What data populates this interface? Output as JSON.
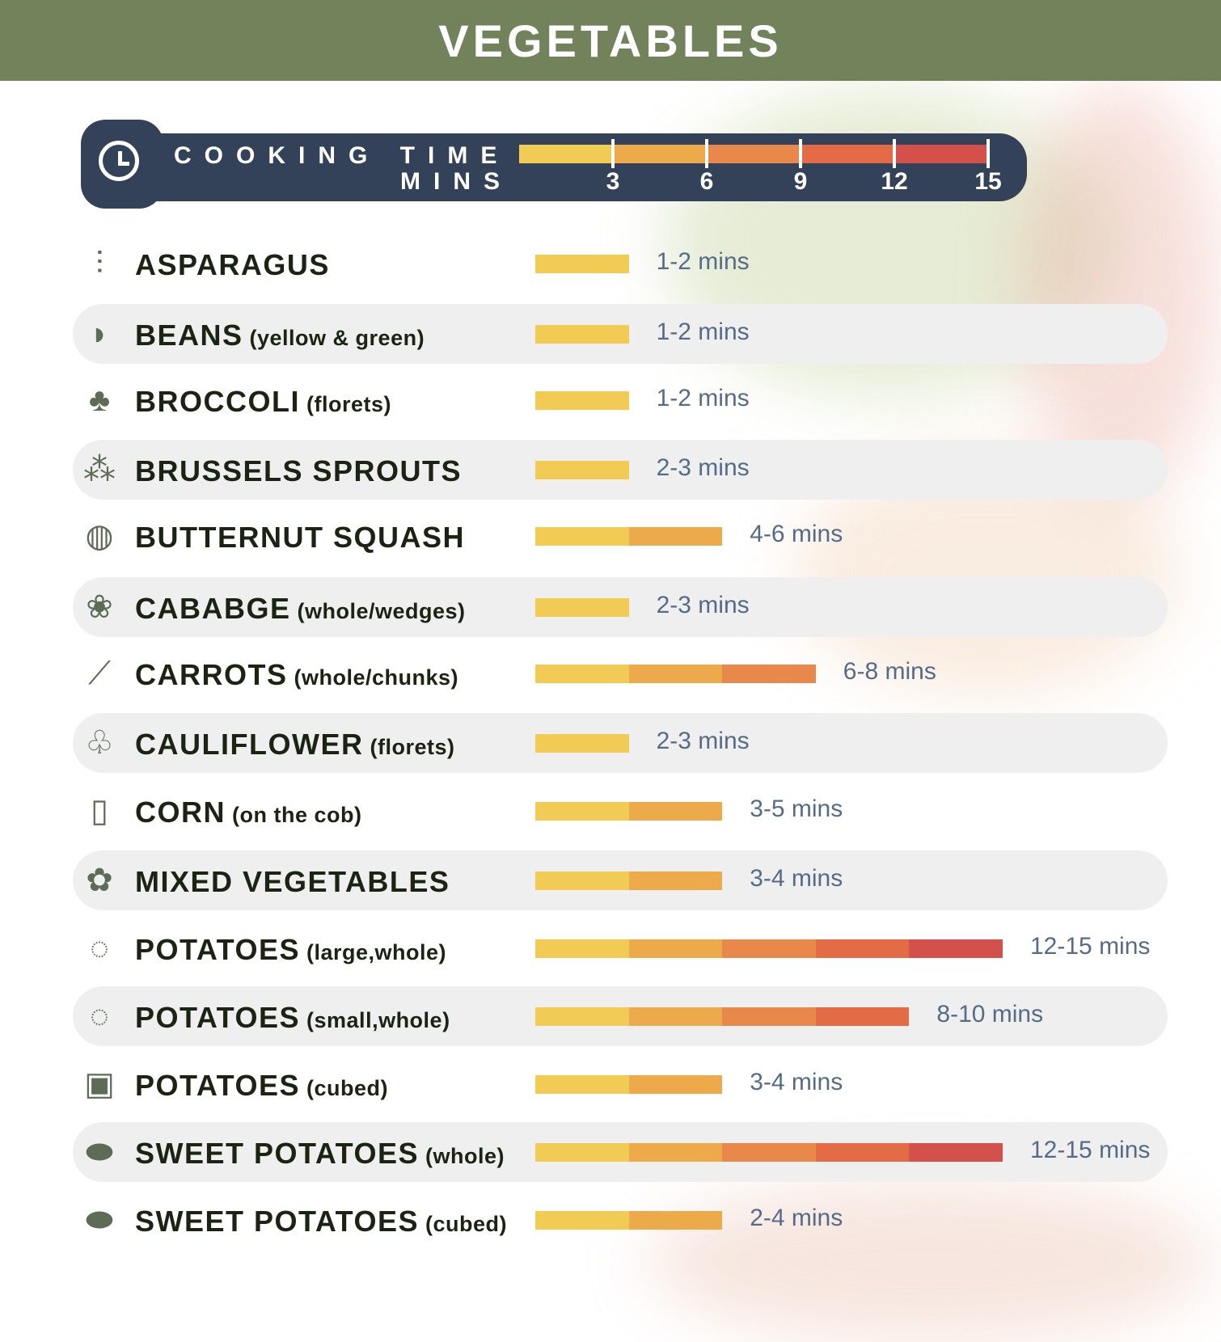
{
  "title": "VEGETABLES",
  "legend": {
    "label_line1": "COOKING TIME",
    "label_line2": "MINS",
    "ticks": [
      "3",
      "6",
      "9",
      "12",
      "15"
    ]
  },
  "colors": {
    "header_bg": "#72825b",
    "legend_bg": "#334259",
    "segments": [
      "#f2cb55",
      "#edaa4b",
      "#e8884a",
      "#e36c46",
      "#d4504a"
    ],
    "time_text": "#556b88"
  },
  "chart_data": {
    "type": "bar",
    "title": "VEGETABLES",
    "xlabel": "COOKING TIME MINS",
    "xlim": [
      0,
      15
    ],
    "xticks": [
      3,
      6,
      9,
      12,
      15
    ],
    "categories": [
      "ASPARAGUS",
      "BEANS (yellow & green)",
      "BROCCOLI (florets)",
      "BRUSSELS SPROUTS",
      "BUTTERNUT SQUASH",
      "CABABGE (whole/wedges)",
      "CARROTS (whole/chunks)",
      "CAULIFLOWER (florets)",
      "CORN (on the cob)",
      "MIXED VEGETABLES",
      "POTATOES (large,whole)",
      "POTATOES (small,whole)",
      "POTATOES (cubed)",
      "SWEET POTATOES (whole)",
      "SWEET POTATOES (cubed)"
    ],
    "values": [
      3,
      3,
      3,
      3,
      6,
      3,
      9,
      3,
      6,
      6,
      15,
      12,
      6,
      15,
      6
    ]
  },
  "items": [
    {
      "name": "ASPARAGUS",
      "note": "",
      "time": "1-2 mins",
      "icon": "asparagus-icon",
      "glyph": "⫶"
    },
    {
      "name": "BEANS",
      "note": "(yellow & green)",
      "time": "1-2 mins",
      "icon": "beans-icon",
      "glyph": "◗"
    },
    {
      "name": "BROCCOLI",
      "note": "(florets)",
      "time": "1-2 mins",
      "icon": "broccoli-icon",
      "glyph": "♣"
    },
    {
      "name": "BRUSSELS SPROUTS",
      "note": "",
      "time": "2-3 mins",
      "icon": "brussels-sprouts-icon",
      "glyph": "⁂"
    },
    {
      "name": "BUTTERNUT SQUASH",
      "note": "",
      "time": "4-6 mins",
      "icon": "squash-icon",
      "glyph": "◍"
    },
    {
      "name": "CABABGE",
      "note": "(whole/wedges)",
      "time": "2-3 mins",
      "icon": "cabbage-icon",
      "glyph": "❀"
    },
    {
      "name": "CARROTS",
      "note": "(whole/chunks)",
      "time": "6-8 mins",
      "icon": "carrot-icon",
      "glyph": "⟋"
    },
    {
      "name": "CAULIFLOWER",
      "note": "(florets)",
      "time": "2-3 mins",
      "icon": "cauliflower-icon",
      "glyph": "♧"
    },
    {
      "name": "CORN",
      "note": "(on the cob)",
      "time": "3-5 mins",
      "icon": "corn-icon",
      "glyph": "▯"
    },
    {
      "name": "MIXED VEGETABLES",
      "note": "",
      "time": "3-4 mins",
      "icon": "mixed-vegetables-icon",
      "glyph": "✿"
    },
    {
      "name": "POTATOES",
      "note": "(large,whole)",
      "time": "12-15 mins",
      "icon": "potato-icon",
      "glyph": "◌"
    },
    {
      "name": "POTATOES",
      "note": "(small,whole)",
      "time": "8-10 mins",
      "icon": "potato-icon",
      "glyph": "◌"
    },
    {
      "name": "POTATOES",
      "note": "(cubed)",
      "time": "3-4 mins",
      "icon": "potato-cubes-icon",
      "glyph": "▣"
    },
    {
      "name": "SWEET POTATOES",
      "note": "(whole)",
      "time": "12-15 mins",
      "icon": "sweet-potato-icon",
      "glyph": "⬬"
    },
    {
      "name": "SWEET POTATOES",
      "note": "(cubed)",
      "time": "2-4 mins",
      "icon": "sweet-potato-icon",
      "glyph": "⬬"
    }
  ]
}
